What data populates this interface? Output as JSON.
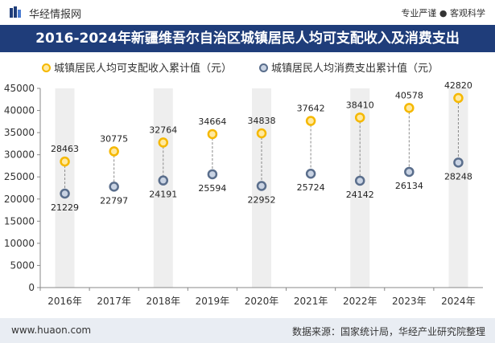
{
  "header": {
    "brand": "华经情报网",
    "slogan": "专业严谨 ● 客观科学"
  },
  "title": "2016-2024年新疆维吾尔自治区城镇居民人均可支配收入及消费支出",
  "footer": {
    "website": "www.huaon.com",
    "source": "数据来源：国家统计局，华经产业研究院整理"
  },
  "colors": {
    "title_band": "#1f3d7a",
    "income": "#f5b800",
    "expense": "#5a6e8c",
    "column_band": "#eeeeee"
  },
  "chart_data": {
    "type": "scatter",
    "categories": [
      "2016年",
      "2017年",
      "2018年",
      "2019年",
      "2020年",
      "2021年",
      "2022年",
      "2023年",
      "2024年"
    ],
    "series": [
      {
        "name": "城镇居民人均可支配收入累计值（元）",
        "values": [
          28463,
          30775,
          32764,
          34664,
          34838,
          37642,
          38410,
          40578,
          42820
        ]
      },
      {
        "name": "城镇居民人均消费支出累计值（元）",
        "values": [
          21229,
          22797,
          24191,
          25594,
          22952,
          25724,
          24142,
          26134,
          28248
        ]
      }
    ],
    "yticks": [
      0,
      5000,
      10000,
      15000,
      20000,
      25000,
      30000,
      35000,
      40000,
      45000
    ],
    "ylim": [
      0,
      45000
    ],
    "legend_position": "top"
  }
}
